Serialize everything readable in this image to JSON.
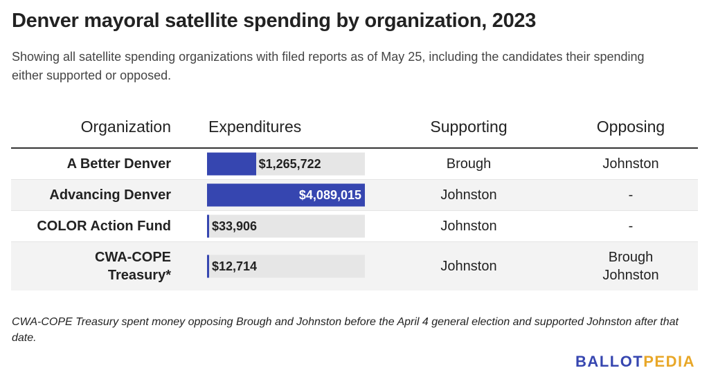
{
  "title": "Denver mayoral satellite spending by organization, 2023",
  "subtitle": "Showing all satellite spending organizations with filed reports as of May 25, including the candidates their spending either supported or opposed.",
  "headers": {
    "organization": "Organization",
    "expenditures": "Expenditures",
    "supporting": "Supporting",
    "opposing": "Opposing"
  },
  "chart_data": {
    "type": "table",
    "title": "Denver mayoral satellite spending by organization, 2023",
    "columns": [
      "Organization",
      "Expenditures",
      "Supporting",
      "Opposing"
    ],
    "bar_max": 4089015,
    "rows": [
      {
        "organization": "A Better Denver",
        "value": 1265722,
        "expenditures": "$1,265,722",
        "supporting": "Brough",
        "opposing": [
          "Johnston"
        ]
      },
      {
        "organization": "Advancing Denver",
        "value": 4089015,
        "expenditures": "$4,089,015",
        "supporting": "Johnston",
        "opposing": [
          "-"
        ]
      },
      {
        "organization": "COLOR Action Fund",
        "value": 33906,
        "expenditures": "$33,906",
        "supporting": "Johnston",
        "opposing": [
          "-"
        ]
      },
      {
        "organization": "CWA-COPE Treasury*",
        "org_lines": [
          "CWA-COPE",
          "Treasury*"
        ],
        "value": 12714,
        "expenditures": "$12,714",
        "supporting": "Johnston",
        "opposing": [
          "Brough",
          "Johnston"
        ]
      }
    ]
  },
  "colors": {
    "bar": "#3646b0",
    "track": "#e6e6e6",
    "logo_primary": "#3646b0",
    "logo_accent": "#e8a728"
  },
  "footnote": "CWA-COPE Treasury spent money opposing Brough and Johnston before the April 4 general election and supported Johnston after that date.",
  "logo": {
    "part1": "BALLOT",
    "part2": "PEDIA"
  }
}
